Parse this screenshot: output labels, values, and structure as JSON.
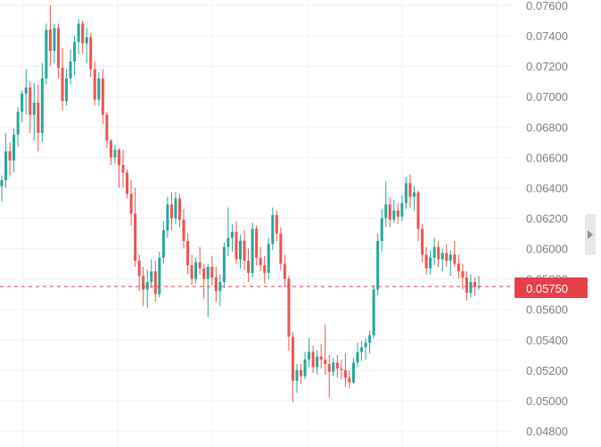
{
  "chart_data": {
    "type": "candlestick",
    "title": "",
    "ylim": [
      0.0478,
      0.0761
    ],
    "y_ticks": [
      "0.07600",
      "0.07400",
      "0.07200",
      "0.07000",
      "0.06800",
      "0.06600",
      "0.06400",
      "0.06200",
      "0.06000",
      "0.05800",
      "0.05600",
      "0.05400",
      "0.05200",
      "0.05000",
      "0.04800"
    ],
    "grid": true,
    "current_price": "0.05750",
    "colors": {
      "up": "#26a69a",
      "down": "#ef5350",
      "price_line": "#e5404a",
      "grid": "#f1f2f4",
      "axis_text": "#7a7f87"
    },
    "candles": [
      [
        0.0641,
        0.0648,
        0.0631,
        0.0645
      ],
      [
        0.0645,
        0.0676,
        0.064,
        0.0664
      ],
      [
        0.0664,
        0.067,
        0.0648,
        0.0658
      ],
      [
        0.0658,
        0.0679,
        0.065,
        0.0675
      ],
      [
        0.0675,
        0.0693,
        0.0667,
        0.069
      ],
      [
        0.069,
        0.0704,
        0.0683,
        0.0702
      ],
      [
        0.0702,
        0.0718,
        0.0688,
        0.0706
      ],
      [
        0.0706,
        0.071,
        0.0676,
        0.0688
      ],
      [
        0.0688,
        0.0709,
        0.0671,
        0.0696
      ],
      [
        0.0696,
        0.0708,
        0.0664,
        0.0676
      ],
      [
        0.0676,
        0.0722,
        0.067,
        0.0712
      ],
      [
        0.0712,
        0.0748,
        0.0708,
        0.0744
      ],
      [
        0.0744,
        0.076,
        0.072,
        0.073
      ],
      [
        0.073,
        0.0748,
        0.0722,
        0.0745
      ],
      [
        0.0745,
        0.0748,
        0.0712,
        0.0719
      ],
      [
        0.0719,
        0.0732,
        0.0691,
        0.0697
      ],
      [
        0.0697,
        0.0718,
        0.0694,
        0.0712
      ],
      [
        0.0712,
        0.0731,
        0.0708,
        0.0723
      ],
      [
        0.0723,
        0.074,
        0.0714,
        0.0736
      ],
      [
        0.0736,
        0.0751,
        0.0728,
        0.0748
      ],
      [
        0.0748,
        0.075,
        0.0728,
        0.0735
      ],
      [
        0.0735,
        0.0745,
        0.0722,
        0.0739
      ],
      [
        0.0739,
        0.0742,
        0.0713,
        0.0718
      ],
      [
        0.0718,
        0.0723,
        0.0694,
        0.0698
      ],
      [
        0.0698,
        0.0716,
        0.0694,
        0.0712
      ],
      [
        0.0712,
        0.0718,
        0.0682,
        0.0688
      ],
      [
        0.0688,
        0.069,
        0.0666,
        0.0671
      ],
      [
        0.0671,
        0.0672,
        0.0655,
        0.066
      ],
      [
        0.066,
        0.0668,
        0.0656,
        0.0665
      ],
      [
        0.0665,
        0.0666,
        0.064,
        0.0655
      ],
      [
        0.0655,
        0.0665,
        0.064,
        0.065
      ],
      [
        0.065,
        0.0652,
        0.0633,
        0.0636
      ],
      [
        0.0636,
        0.0645,
        0.0615,
        0.0623
      ],
      [
        0.0623,
        0.064,
        0.0588,
        0.0592
      ],
      [
        0.0592,
        0.0596,
        0.0572,
        0.0582
      ],
      [
        0.0582,
        0.0588,
        0.0562,
        0.0573
      ],
      [
        0.0573,
        0.0586,
        0.0561,
        0.0578
      ],
      [
        0.0578,
        0.0593,
        0.0574,
        0.0585
      ],
      [
        0.0585,
        0.0592,
        0.0565,
        0.057
      ],
      [
        0.057,
        0.0598,
        0.0568,
        0.0594
      ],
      [
        0.0594,
        0.0618,
        0.059,
        0.0612
      ],
      [
        0.0612,
        0.0634,
        0.0607,
        0.0629
      ],
      [
        0.0629,
        0.0637,
        0.0612,
        0.062
      ],
      [
        0.062,
        0.0637,
        0.0616,
        0.0633
      ],
      [
        0.0633,
        0.0636,
        0.0614,
        0.0619
      ],
      [
        0.0619,
        0.0626,
        0.06,
        0.0605
      ],
      [
        0.0605,
        0.061,
        0.0583,
        0.0589
      ],
      [
        0.0589,
        0.0596,
        0.0576,
        0.058
      ],
      [
        0.058,
        0.0594,
        0.0577,
        0.0591
      ],
      [
        0.0591,
        0.0601,
        0.0583,
        0.0587
      ],
      [
        0.0587,
        0.059,
        0.0567,
        0.058
      ],
      [
        0.058,
        0.059,
        0.0555,
        0.0588
      ],
      [
        0.0588,
        0.0595,
        0.0576,
        0.0581
      ],
      [
        0.0581,
        0.0588,
        0.0565,
        0.0572
      ],
      [
        0.0572,
        0.0583,
        0.0562,
        0.0578
      ],
      [
        0.0578,
        0.0604,
        0.0574,
        0.0601
      ],
      [
        0.0601,
        0.0627,
        0.0595,
        0.0607
      ],
      [
        0.0607,
        0.0616,
        0.0598,
        0.0611
      ],
      [
        0.0611,
        0.0618,
        0.059,
        0.0593
      ],
      [
        0.0593,
        0.0609,
        0.0587,
        0.0605
      ],
      [
        0.0605,
        0.0612,
        0.0586,
        0.0592
      ],
      [
        0.0592,
        0.06,
        0.0578,
        0.0584
      ],
      [
        0.0584,
        0.0617,
        0.0581,
        0.0613
      ],
      [
        0.0613,
        0.0615,
        0.0589,
        0.0594
      ],
      [
        0.0594,
        0.0601,
        0.0585,
        0.0589
      ],
      [
        0.0589,
        0.0595,
        0.0577,
        0.0584
      ],
      [
        0.0584,
        0.0607,
        0.058,
        0.0603
      ],
      [
        0.0603,
        0.0627,
        0.0599,
        0.0622
      ],
      [
        0.0622,
        0.0625,
        0.0605,
        0.061
      ],
      [
        0.061,
        0.0614,
        0.0586,
        0.059
      ],
      [
        0.059,
        0.0596,
        0.0575,
        0.058
      ],
      [
        0.058,
        0.0582,
        0.0533,
        0.0542
      ],
      [
        0.0542,
        0.0545,
        0.0499,
        0.0513
      ],
      [
        0.0513,
        0.0524,
        0.0505,
        0.052
      ],
      [
        0.052,
        0.0524,
        0.0511,
        0.0516
      ],
      [
        0.0516,
        0.0532,
        0.0514,
        0.0527
      ],
      [
        0.0527,
        0.0541,
        0.0522,
        0.0532
      ],
      [
        0.0532,
        0.0536,
        0.0518,
        0.0522
      ],
      [
        0.0522,
        0.0533,
        0.0517,
        0.0529
      ],
      [
        0.0529,
        0.0537,
        0.0521,
        0.0527
      ],
      [
        0.0527,
        0.055,
        0.0517,
        0.0524
      ],
      [
        0.0524,
        0.053,
        0.0502,
        0.0519
      ],
      [
        0.0519,
        0.0528,
        0.0516,
        0.0525
      ],
      [
        0.0525,
        0.053,
        0.0515,
        0.0521
      ],
      [
        0.0521,
        0.0527,
        0.0514,
        0.052
      ],
      [
        0.052,
        0.0531,
        0.0509,
        0.0515
      ],
      [
        0.0515,
        0.052,
        0.0508,
        0.0512
      ],
      [
        0.0512,
        0.0528,
        0.0511,
        0.0525
      ],
      [
        0.0525,
        0.0538,
        0.0522,
        0.0532
      ],
      [
        0.0532,
        0.0539,
        0.0526,
        0.0535
      ],
      [
        0.0535,
        0.0541,
        0.0527,
        0.0538
      ],
      [
        0.0538,
        0.0546,
        0.0531,
        0.0543
      ],
      [
        0.0543,
        0.0576,
        0.0541,
        0.0573
      ],
      [
        0.0573,
        0.061,
        0.0569,
        0.0605
      ],
      [
        0.0605,
        0.0626,
        0.0598,
        0.062
      ],
      [
        0.062,
        0.0644,
        0.0614,
        0.0629
      ],
      [
        0.0629,
        0.0634,
        0.0614,
        0.0619
      ],
      [
        0.0619,
        0.0632,
        0.0617,
        0.0625
      ],
      [
        0.0625,
        0.063,
        0.0616,
        0.0621
      ],
      [
        0.0621,
        0.0635,
        0.0618,
        0.063
      ],
      [
        0.063,
        0.0647,
        0.0626,
        0.0643
      ],
      [
        0.0643,
        0.0649,
        0.0627,
        0.0634
      ],
      [
        0.0634,
        0.0641,
        0.0625,
        0.0637
      ],
      [
        0.0637,
        0.0638,
        0.0605,
        0.0613
      ],
      [
        0.0613,
        0.0616,
        0.0591,
        0.0596
      ],
      [
        0.0596,
        0.0601,
        0.0583,
        0.0587
      ],
      [
        0.0587,
        0.0599,
        0.0583,
        0.0594
      ],
      [
        0.0594,
        0.0607,
        0.0589,
        0.0601
      ],
      [
        0.0601,
        0.0605,
        0.0588,
        0.0593
      ],
      [
        0.0593,
        0.06,
        0.0585,
        0.0597
      ],
      [
        0.0597,
        0.0603,
        0.0588,
        0.0592
      ],
      [
        0.0592,
        0.0599,
        0.0582,
        0.0596
      ],
      [
        0.0596,
        0.0605,
        0.0588,
        0.059
      ],
      [
        0.059,
        0.0596,
        0.058,
        0.0585
      ],
      [
        0.0585,
        0.059,
        0.0573,
        0.0581
      ],
      [
        0.0581,
        0.0585,
        0.0566,
        0.0571
      ],
      [
        0.0571,
        0.0583,
        0.0568,
        0.0578
      ],
      [
        0.0578,
        0.0581,
        0.0569,
        0.0575
      ],
      [
        0.0575,
        0.0582,
        0.0573,
        0.0575
      ]
    ]
  }
}
